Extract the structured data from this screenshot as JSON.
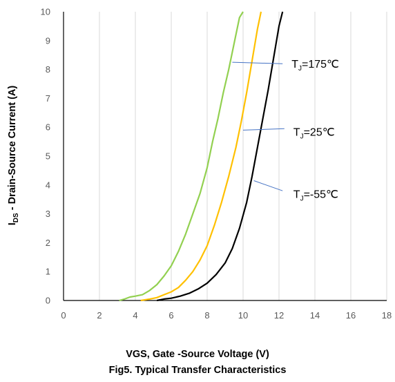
{
  "chart_data": {
    "type": "line",
    "xlabel": "VGS, Gate -Source Voltage (V)",
    "ylabel": {
      "prefix": "I",
      "sub": "DS",
      "rest": " - Drain-Source Current (A)"
    },
    "caption": "Fig5. Typical Transfer Characteristics",
    "xlim": [
      0,
      18
    ],
    "ylim": [
      0,
      10
    ],
    "x_ticks": [
      0,
      2,
      4,
      6,
      8,
      10,
      12,
      14,
      16,
      18
    ],
    "y_ticks": [
      0,
      1,
      2,
      3,
      4,
      5,
      6,
      7,
      8,
      9,
      10
    ],
    "grid": "vertical",
    "series": [
      {
        "name": "TJ=175℃",
        "label": {
          "pre": "T",
          "sub": "J",
          "post": "=175℃"
        },
        "color": "#92D050",
        "x": [
          3.1,
          3.4,
          3.7,
          4.0,
          4.4,
          4.8,
          5.2,
          5.6,
          6.0,
          6.4,
          6.8,
          7.2,
          7.6,
          8.0,
          8.3,
          8.6,
          8.9,
          9.2,
          9.4,
          9.6,
          9.8,
          10.0
        ],
        "y": [
          0.0,
          0.05,
          0.12,
          0.15,
          0.2,
          0.35,
          0.55,
          0.85,
          1.2,
          1.7,
          2.3,
          3.0,
          3.7,
          4.6,
          5.5,
          6.3,
          7.2,
          8.0,
          8.6,
          9.2,
          9.8,
          10.0
        ]
      },
      {
        "name": "TJ=25℃",
        "label": {
          "pre": "T",
          "sub": "J",
          "post": "=25℃"
        },
        "color": "#FFC000",
        "x": [
          4.3,
          4.8,
          5.2,
          5.6,
          6.0,
          6.4,
          6.8,
          7.2,
          7.6,
          8.0,
          8.4,
          8.8,
          9.2,
          9.6,
          9.9,
          10.2,
          10.5,
          10.8,
          11.0
        ],
        "y": [
          0.0,
          0.05,
          0.1,
          0.2,
          0.3,
          0.45,
          0.7,
          1.0,
          1.4,
          1.9,
          2.6,
          3.4,
          4.3,
          5.3,
          6.2,
          7.2,
          8.3,
          9.4,
          10.0
        ]
      },
      {
        "name": "TJ=-55℃",
        "label": {
          "pre": "T",
          "sub": "J",
          "post": "=-55℃"
        },
        "color": "#000000",
        "x": [
          5.2,
          5.6,
          6.0,
          6.5,
          7.0,
          7.5,
          8.0,
          8.5,
          9.0,
          9.4,
          9.8,
          10.2,
          10.5,
          10.8,
          11.1,
          11.4,
          11.7,
          12.0,
          12.2
        ],
        "y": [
          0.0,
          0.05,
          0.08,
          0.15,
          0.25,
          0.4,
          0.6,
          0.9,
          1.3,
          1.8,
          2.5,
          3.4,
          4.3,
          5.3,
          6.3,
          7.3,
          8.4,
          9.5,
          10.0
        ]
      }
    ],
    "annotations": [
      {
        "series": 0,
        "label_anchor": [
          12.7,
          8.2
        ],
        "arrow_from": [
          12.2,
          8.2
        ],
        "arrow_to": [
          9.4,
          8.25
        ]
      },
      {
        "series": 1,
        "label_anchor": [
          12.8,
          5.85
        ],
        "arrow_from": [
          12.3,
          5.95
        ],
        "arrow_to": [
          10.0,
          5.9
        ]
      },
      {
        "series": 2,
        "label_anchor": [
          12.8,
          3.7
        ],
        "arrow_from": [
          12.2,
          3.8
        ],
        "arrow_to": [
          10.6,
          4.15
        ]
      }
    ]
  }
}
